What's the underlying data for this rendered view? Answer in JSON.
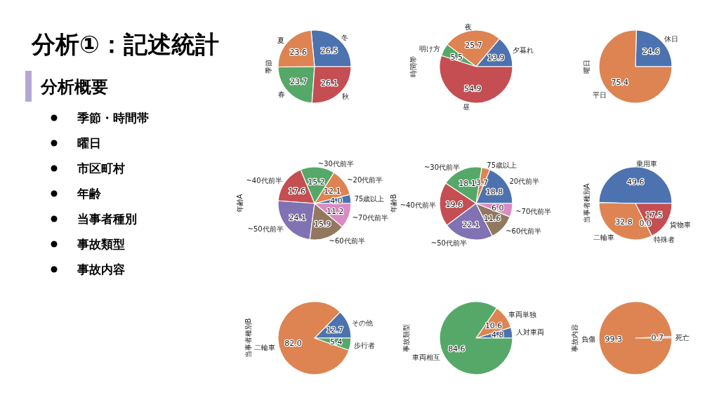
{
  "chart_data": [
    {
      "type": "other",
      "title": "分析①：記述統計",
      "subtitle": "分析概要",
      "annotations": [
        "季節・時間帯",
        "曜日",
        "市区町村",
        "年齢",
        "当事者種別",
        "事故類型",
        "事故内容"
      ]
    },
    {
      "type": "pie",
      "ylabel": "季節",
      "categories": [
        "冬",
        "夏",
        "春",
        "秋"
      ],
      "values": [
        26.5,
        23.6,
        23.7,
        26.1
      ],
      "value_labels": [
        "26.5",
        "23.6",
        "23.7",
        "26.1"
      ],
      "colors": [
        "#4c72b0",
        "#dd8452",
        "#55a868",
        "#c44e52"
      ]
    },
    {
      "type": "pie",
      "ylabel": "時間帯",
      "categories": [
        "夕暮れ",
        "夜",
        "明け方",
        "昼"
      ],
      "values": [
        13.9,
        25.7,
        5.5,
        54.9
      ],
      "value_labels": [
        "13.9",
        "25.7",
        "5.5",
        "54.9"
      ],
      "colors": [
        "#4c72b0",
        "#dd8452",
        "#55a868",
        "#c44e52"
      ]
    },
    {
      "type": "pie",
      "ylabel": "曜日",
      "categories": [
        "休日",
        "平日"
      ],
      "values": [
        24.6,
        75.4
      ],
      "value_labels": [
        "24.6",
        "75.4"
      ],
      "colors": [
        "#4c72b0",
        "#dd8452"
      ]
    },
    {
      "type": "pie",
      "ylabel": "年齢A",
      "categories": [
        "75歳以上",
        "~20代前半",
        "~30代前半",
        "~40代前半",
        "~50代前半",
        "~60代前半",
        "~70代前半"
      ],
      "values": [
        4.0,
        12.1,
        15.2,
        17.6,
        24.1,
        15.9,
        11.2
      ],
      "value_labels": [
        "4.0",
        "12.1",
        "15.2",
        "17.6",
        "24.1",
        "15.9",
        "11.2"
      ],
      "colors": [
        "#4c72b0",
        "#dd8452",
        "#55a868",
        "#c44e52",
        "#8172b3",
        "#937860",
        "#da8bc3"
      ]
    },
    {
      "type": "pie",
      "ylabel": "年齢B",
      "categories": [
        "20代前半",
        "75歳以上",
        "~30代前半",
        "~40代前半",
        "~50代前半",
        "~60代前半",
        "~70代前半"
      ],
      "values": [
        18.8,
        3.7,
        18.1,
        19.6,
        22.1,
        11.6,
        6.0
      ],
      "value_labels": [
        "18.8",
        "3.7",
        "18.1",
        "19.6",
        "22.1",
        "11.6",
        "6.0"
      ],
      "colors": [
        "#4c72b0",
        "#dd8452",
        "#55a868",
        "#c44e52",
        "#8172b3",
        "#937860",
        "#da8bc3"
      ]
    },
    {
      "type": "pie",
      "ylabel": "当事者種別A",
      "categories": [
        "乗用車",
        "二輪車",
        "特殊者",
        "貨物車"
      ],
      "values": [
        49.6,
        32.8,
        0.0,
        17.5
      ],
      "value_labels": [
        "49.6",
        "32.8",
        "0.0",
        "17.5"
      ],
      "colors": [
        "#4c72b0",
        "#dd8452",
        "#55a868",
        "#c44e52"
      ]
    },
    {
      "type": "pie",
      "ylabel": "当事者種別B",
      "categories": [
        "その他",
        "二輪車",
        "歩行者"
      ],
      "values": [
        12.7,
        82.0,
        5.4
      ],
      "value_labels": [
        "12.7",
        "82.0",
        "5.4"
      ],
      "colors": [
        "#4c72b0",
        "#dd8452",
        "#55a868"
      ]
    },
    {
      "type": "pie",
      "ylabel": "事故類型",
      "categories": [
        "人対車両",
        "車両単独",
        "車両相互"
      ],
      "values": [
        4.8,
        10.6,
        84.6
      ],
      "value_labels": [
        "4.8",
        "10.6",
        "84.6"
      ],
      "colors": [
        "#4c72b0",
        "#dd8452",
        "#55a868"
      ]
    },
    {
      "type": "pie",
      "ylabel": "事故内容",
      "categories": [
        "死亡",
        "負傷"
      ],
      "values": [
        0.7,
        99.3
      ],
      "value_labels": [
        "0.7",
        "99.3"
      ],
      "colors": [
        "#4c72b0",
        "#dd8452"
      ]
    }
  ]
}
